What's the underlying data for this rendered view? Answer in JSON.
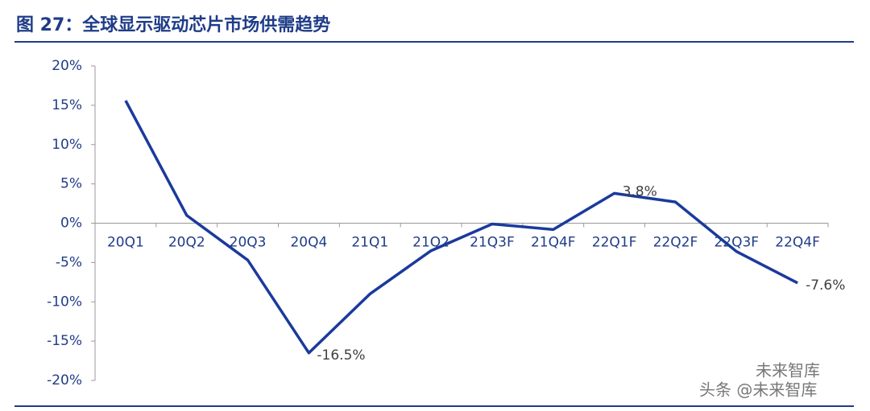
{
  "chart_data": {
    "type": "line",
    "title": "图 27：全球显示驱动芯片市场供需趋势",
    "categories": [
      "20Q1",
      "20Q2",
      "20Q3",
      "20Q4",
      "21Q1",
      "21Q2",
      "21Q3F",
      "21Q4F",
      "22Q1F",
      "22Q2F",
      "22Q3F",
      "22Q4F"
    ],
    "series": [
      {
        "color": "#1a3a9c",
        "values": [
          15.6,
          1.0,
          -4.7,
          -16.5,
          -9.0,
          -3.5,
          -0.1,
          -0.8,
          3.8,
          2.7,
          -3.6,
          -7.6
        ],
        "value_labels": [
          null,
          null,
          null,
          "-16.5%",
          null,
          null,
          null,
          null,
          "3.8%",
          null,
          null,
          "-7.6%"
        ]
      }
    ],
    "ylim": [
      -20,
      20
    ],
    "yticks": [
      {
        "value": -20,
        "label": "-20%"
      },
      {
        "value": -15,
        "label": "-15%"
      },
      {
        "value": -10,
        "label": "-10%"
      },
      {
        "value": -5,
        "label": "-5%"
      },
      {
        "value": 0,
        "label": "0%"
      },
      {
        "value": 5,
        "label": "5%"
      },
      {
        "value": 10,
        "label": "10%"
      },
      {
        "value": 15,
        "label": "15%"
      },
      {
        "value": 20,
        "label": "20%"
      }
    ],
    "watermark": [
      "未来智库",
      "头条 @未来智库"
    ]
  }
}
